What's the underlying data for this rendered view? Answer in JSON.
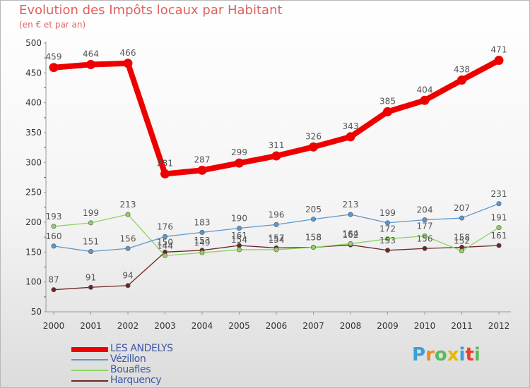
{
  "chart_data": {
    "type": "line",
    "title": "Evolution des Impôts locaux par Habitant",
    "subtitle": "(en € et par an)",
    "xlabel": "",
    "ylabel": "",
    "ylim": [
      50,
      500
    ],
    "yticks": [
      50,
      100,
      150,
      200,
      250,
      300,
      350,
      400,
      450,
      500
    ],
    "categories": [
      "2000",
      "2001",
      "2002",
      "2003",
      "2004",
      "2005",
      "2006",
      "2007",
      "2008",
      "2009",
      "2010",
      "2011",
      "2012"
    ],
    "series": [
      {
        "name": "LES ANDELYS",
        "color": "#ee0000",
        "values": [
          459,
          464,
          466,
          281,
          287,
          299,
          311,
          326,
          343,
          385,
          404,
          438,
          471
        ],
        "labels": [
          "459",
          "464",
          "466",
          "281",
          "287",
          "299",
          "311",
          "326",
          "343",
          "385",
          "404",
          "438",
          "471"
        ]
      },
      {
        "name": "Vézillon",
        "color": "#5b98cf",
        "values": [
          160,
          151,
          156,
          176,
          183,
          190,
          196,
          205,
          213,
          199,
          204,
          207,
          231
        ],
        "labels": [
          "160",
          "151",
          "156",
          "176",
          "183",
          "190",
          "196",
          "205",
          "213",
          "199",
          "204",
          "207",
          "231"
        ]
      },
      {
        "name": "Bouafles",
        "color": "#8fd25f",
        "values": [
          193,
          199,
          213,
          144,
          149,
          154,
          154,
          158,
          164,
          172,
          177,
          152,
          191
        ],
        "labels": [
          "193",
          "199",
          "213",
          "144",
          "149",
          "154",
          "154",
          "158",
          "164",
          "172",
          "177",
          "152",
          "191"
        ]
      },
      {
        "name": "Harquency",
        "color": "#6b2727",
        "values": [
          87,
          91,
          94,
          150,
          153,
          161,
          157,
          158,
          162,
          153,
          156,
          158,
          161
        ],
        "labels": [
          "87",
          "91",
          "94",
          "150",
          "153",
          "161",
          "157",
          "158",
          "162",
          "153",
          "156",
          "158",
          "161"
        ]
      }
    ]
  },
  "logo": {
    "letters": [
      "P",
      "r",
      "o",
      "x",
      "i",
      "t",
      "i"
    ],
    "colors": [
      "#3aa0db",
      "#f08a1e",
      "#5cb85c",
      "#e6b800",
      "#3aa0db",
      "#e8402c",
      "#5cb85c"
    ]
  }
}
